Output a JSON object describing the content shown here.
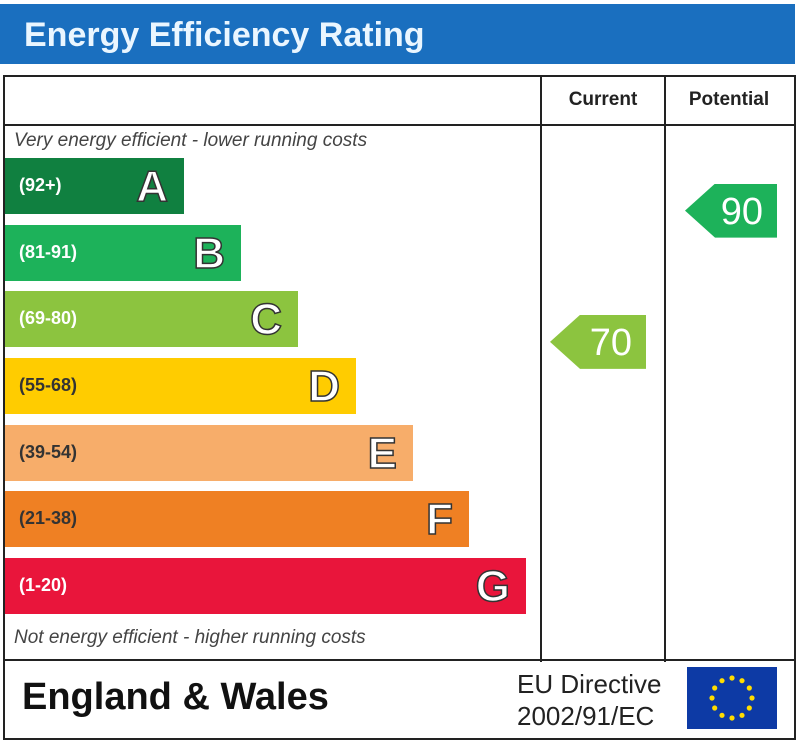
{
  "header": {
    "title": "Energy Efficiency Rating"
  },
  "columns": {
    "current": "Current",
    "potential": "Potential"
  },
  "notes": {
    "top": "Very energy efficient - lower running costs",
    "bottom": "Not energy efficient - higher running costs"
  },
  "footer": {
    "region": "England & Wales",
    "directive_line1": "EU Directive",
    "directive_line2": "2002/91/EC",
    "flag_icon": "eu-flag-icon"
  },
  "chart_data": {
    "type": "bar",
    "title": "Energy Efficiency Rating",
    "bands": [
      {
        "letter": "A",
        "range": "(92+)",
        "color": "#108040"
      },
      {
        "letter": "B",
        "range": "(81-91)",
        "color": "#1db25a"
      },
      {
        "letter": "C",
        "range": "(69-80)",
        "color": "#8cc43f"
      },
      {
        "letter": "D",
        "range": "(55-68)",
        "color": "#ffcc00"
      },
      {
        "letter": "E",
        "range": "(39-54)",
        "color": "#f7ad6a"
      },
      {
        "letter": "F",
        "range": "(21-38)",
        "color": "#ef8023"
      },
      {
        "letter": "G",
        "range": "(1-20)",
        "color": "#e9153b"
      }
    ],
    "current": {
      "value": "70",
      "band": "C",
      "color": "#8cc43f"
    },
    "potential": {
      "value": "90",
      "band": "B",
      "color": "#1db25a"
    }
  }
}
